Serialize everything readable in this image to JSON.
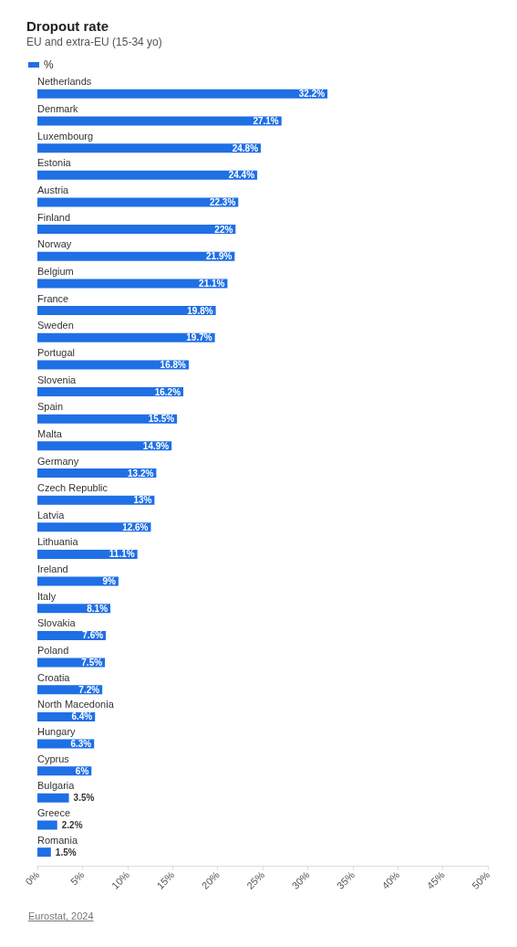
{
  "chart_data": {
    "type": "bar",
    "orientation": "horizontal",
    "title": "Dropout rate",
    "subtitle": "EU and extra-EU (15-34 yo)",
    "categories": [
      "Netherlands",
      "Denmark",
      "Luxembourg",
      "Estonia",
      "Austria",
      "Finland",
      "Norway",
      "Belgium",
      "France",
      "Sweden",
      "Portugal",
      "Slovenia",
      "Spain",
      "Malta",
      "Germany",
      "Czech Republic",
      "Latvia",
      "Lithuania",
      "Ireland",
      "Italy",
      "Slovakia",
      "Poland",
      "Croatia",
      "North Macedonia",
      "Hungary",
      "Cyprus",
      "Bulgaria",
      "Greece",
      "Romania"
    ],
    "series": [
      {
        "name": "%",
        "color": "#1f6fe5",
        "values": [
          32.2,
          27.1,
          24.8,
          24.4,
          22.3,
          22,
          21.9,
          21.1,
          19.8,
          19.7,
          16.8,
          16.2,
          15.5,
          14.9,
          13.2,
          13,
          12.6,
          11.1,
          9,
          8.1,
          7.6,
          7.5,
          7.2,
          6.4,
          6.3,
          6,
          3.5,
          2.2,
          1.5
        ],
        "value_labels": [
          "32.2%",
          "27.1%",
          "24.8%",
          "24.4%",
          "22.3%",
          "22%",
          "21.9%",
          "21.1%",
          "19.8%",
          "19.7%",
          "16.8%",
          "16.2%",
          "15.5%",
          "14.9%",
          "13.2%",
          "13%",
          "12.6%",
          "11.1%",
          "9%",
          "8.1%",
          "7.6%",
          "7.5%",
          "7.2%",
          "6.4%",
          "6.3%",
          "6%",
          "3.5%",
          "2.2%",
          "1.5%"
        ]
      }
    ],
    "xlim": [
      0,
      50
    ],
    "xticks": [
      {
        "value": 0,
        "label": "0%"
      },
      {
        "value": 5,
        "label": "5%"
      },
      {
        "value": 10,
        "label": "10%"
      },
      {
        "value": 15,
        "label": "15%"
      },
      {
        "value": 20,
        "label": "20%"
      },
      {
        "value": 25,
        "label": "25%"
      },
      {
        "value": 30,
        "label": "30%"
      },
      {
        "value": 35,
        "label": "35%"
      },
      {
        "value": 40,
        "label": "40%"
      },
      {
        "value": 45,
        "label": "45%"
      },
      {
        "value": 50,
        "label": "50%"
      }
    ],
    "legend": "top left",
    "annotations": [
      "Eurostat, 2024"
    ]
  }
}
